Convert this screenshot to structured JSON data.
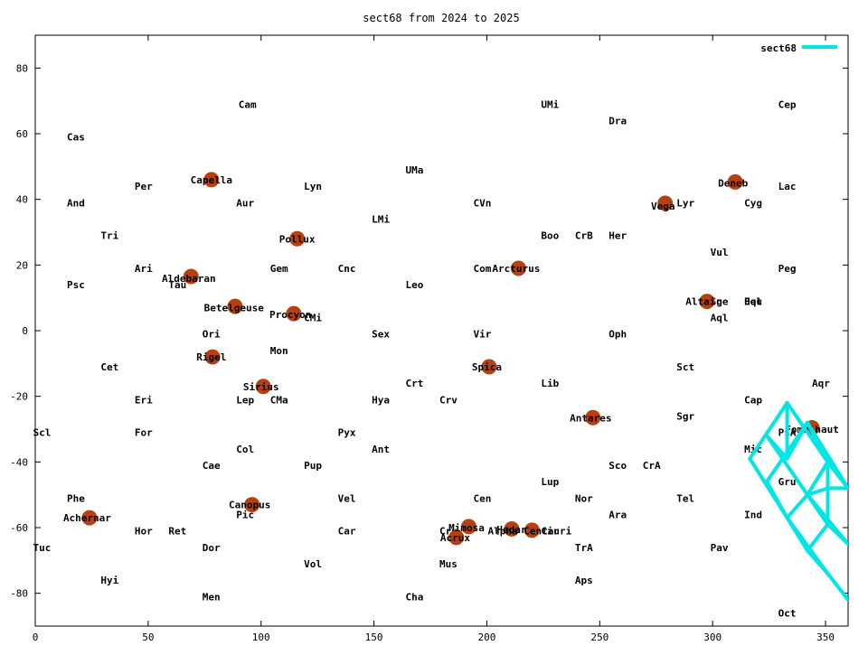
{
  "chart_data": {
    "type": "scatter",
    "title": "sect68 from 2024 to 2025",
    "xlabel": "",
    "ylabel": "",
    "xlim": [
      0,
      360
    ],
    "ylim": [
      -90,
      90
    ],
    "xticks": [
      0,
      50,
      100,
      150,
      200,
      250,
      300,
      350
    ],
    "yticks": [
      -80,
      -60,
      -40,
      -20,
      0,
      20,
      40,
      60,
      80
    ],
    "grid": false,
    "legend": {
      "position": "top-right",
      "label": "sect68",
      "color": "#00e5e5"
    },
    "colors": {
      "star": "#b8400f",
      "series": "#00e5e5",
      "axis": "#000000"
    },
    "series": [
      {
        "name": "sect68",
        "color": "#00e5e5",
        "segments": [
          [
            [
              316.5,
              -39
            ],
            [
              333,
              -22
            ],
            [
              351,
              -40
            ],
            [
              360,
              -48
            ]
          ],
          [
            [
              316.5,
              -39
            ],
            [
              333,
              -57
            ],
            [
              351,
              -74
            ],
            [
              360,
              -82
            ]
          ],
          [
            [
              324,
              -32
            ],
            [
              342,
              -50
            ],
            [
              360,
              -65
            ]
          ],
          [
            [
              324,
              -46
            ],
            [
              342,
              -28
            ],
            [
              360,
              -48
            ]
          ],
          [
            [
              333,
              -22
            ],
            [
              333,
              -39
            ]
          ],
          [
            [
              324,
              -32
            ],
            [
              333,
              -39
            ],
            [
              342,
              -28
            ]
          ],
          [
            [
              333,
              -57
            ],
            [
              342,
              -50
            ],
            [
              351,
              -40
            ],
            [
              360,
              -48
            ]
          ],
          [
            [
              342,
              -50
            ],
            [
              351,
              -59
            ],
            [
              360,
              -65
            ]
          ],
          [
            [
              342,
              -50
            ],
            [
              351,
              -48
            ],
            [
              360,
              -48
            ]
          ],
          [
            [
              351,
              -40
            ],
            [
              351,
              -59
            ]
          ],
          [
            [
              324,
              -46
            ],
            [
              333,
              -57
            ]
          ],
          [
            [
              342,
              -67
            ],
            [
              351,
              -74
            ]
          ],
          [
            [
              333,
              -57
            ],
            [
              342,
              -67
            ],
            [
              351,
              -59
            ]
          ],
          [
            [
              342,
              -28
            ],
            [
              351,
              -40
            ]
          ]
        ]
      }
    ],
    "stars": [
      {
        "name": "Capella",
        "x": 78,
        "y": 46
      },
      {
        "name": "Aldebaran",
        "x": 69,
        "y": 16.5
      },
      {
        "name": "Betelgeuse",
        "x": 88.5,
        "y": 7.4
      },
      {
        "name": "Rigel",
        "x": 78.5,
        "y": -8
      },
      {
        "name": "Sirius",
        "x": 101,
        "y": -17
      },
      {
        "name": "Canopus",
        "x": 96,
        "y": -53
      },
      {
        "name": "Achernar",
        "x": 24,
        "y": -57
      },
      {
        "name": "Pollux",
        "x": 116,
        "y": 28
      },
      {
        "name": "Procyon",
        "x": 114.5,
        "y": 5.2
      },
      {
        "name": "Arcturus",
        "x": 214,
        "y": 19
      },
      {
        "name": "Spica",
        "x": 201,
        "y": -11
      },
      {
        "name": "Antares",
        "x": 247,
        "y": -26.5
      },
      {
        "name": "Mimosa",
        "x": 192,
        "y": -59.7
      },
      {
        "name": "Acrux",
        "x": 186.5,
        "y": -63
      },
      {
        "name": "Hadar",
        "x": 211,
        "y": -60.4
      },
      {
        "name": "Alpha Centauri",
        "x": 220,
        "y": -60.8
      },
      {
        "name": "Vega",
        "x": 279,
        "y": 38.8
      },
      {
        "name": "Deneb",
        "x": 310,
        "y": 45.3
      },
      {
        "name": "Altair",
        "x": 297.5,
        "y": 8.9
      },
      {
        "name": "Fomalhaut",
        "x": 344,
        "y": -29.6
      }
    ],
    "star_labels": [
      {
        "text": "Capella",
        "x": 78,
        "y": 46
      },
      {
        "text": "Aldebaran",
        "x": 68,
        "y": 16
      },
      {
        "text": "Betelgeuse",
        "x": 88,
        "y": 7
      },
      {
        "text": "Rigel",
        "x": 78,
        "y": -8
      },
      {
        "text": "Sirius",
        "x": 100,
        "y": -17
      },
      {
        "text": "Canopus",
        "x": 95,
        "y": -53
      },
      {
        "text": "Achernar",
        "x": 23,
        "y": -57
      },
      {
        "text": "Pollux",
        "x": 116,
        "y": 28
      },
      {
        "text": "Procyon",
        "x": 113,
        "y": 5
      },
      {
        "text": "Arcturus",
        "x": 213,
        "y": 19
      },
      {
        "text": "Spica",
        "x": 200,
        "y": -11
      },
      {
        "text": "Antares",
        "x": 246,
        "y": -26.5
      },
      {
        "text": "Mimosa",
        "x": 191,
        "y": -60
      },
      {
        "text": "Acrux",
        "x": 186,
        "y": -63
      },
      {
        "text": "Alpha Centauri",
        "x": 219,
        "y": -61
      },
      {
        "text": "Hadar",
        "x": 211,
        "y": -60.5
      },
      {
        "text": "Vega",
        "x": 278,
        "y": 38
      },
      {
        "text": "Deneb",
        "x": 309,
        "y": 45
      },
      {
        "text": "Altair",
        "x": 296,
        "y": 9
      },
      {
        "text": "Fomalhaut",
        "x": 344,
        "y": -30
      }
    ],
    "constellation_labels": [
      {
        "text": "Cam",
        "x": 90,
        "y": 69
      },
      {
        "text": "UMi",
        "x": 224,
        "y": 69
      },
      {
        "text": "Cep",
        "x": 329,
        "y": 69
      },
      {
        "text": "Dra",
        "x": 254,
        "y": 64
      },
      {
        "text": "Cas",
        "x": 14,
        "y": 59
      },
      {
        "text": "UMa",
        "x": 164,
        "y": 49
      },
      {
        "text": "Per",
        "x": 44,
        "y": 44
      },
      {
        "text": "Lyn",
        "x": 119,
        "y": 44
      },
      {
        "text": "Lac",
        "x": 329,
        "y": 44
      },
      {
        "text": "And",
        "x": 14,
        "y": 39
      },
      {
        "text": "Aur",
        "x": 89,
        "y": 39
      },
      {
        "text": "CVn",
        "x": 194,
        "y": 39
      },
      {
        "text": "Lyr",
        "x": 284,
        "y": 39
      },
      {
        "text": "Cyg",
        "x": 314,
        "y": 39
      },
      {
        "text": "LMi",
        "x": 149,
        "y": 34
      },
      {
        "text": "Tri",
        "x": 29,
        "y": 29
      },
      {
        "text": "Boo",
        "x": 224,
        "y": 29
      },
      {
        "text": "CrB",
        "x": 239,
        "y": 29
      },
      {
        "text": "Her",
        "x": 254,
        "y": 29
      },
      {
        "text": "Vul",
        "x": 299,
        "y": 24
      },
      {
        "text": "Ari",
        "x": 44,
        "y": 19
      },
      {
        "text": "Gem",
        "x": 104,
        "y": 19
      },
      {
        "text": "Cnc",
        "x": 134,
        "y": 19
      },
      {
        "text": "Com",
        "x": 194,
        "y": 19
      },
      {
        "text": "Peg",
        "x": 329,
        "y": 19
      },
      {
        "text": "Psc",
        "x": 14,
        "y": 14
      },
      {
        "text": "Tau",
        "x": 59,
        "y": 14
      },
      {
        "text": "Leo",
        "x": 164,
        "y": 14
      },
      {
        "text": "Sge",
        "x": 299,
        "y": 9
      },
      {
        "text": "Equ",
        "x": 314,
        "y": 9
      },
      {
        "text": "Del",
        "x": 314,
        "y": 9
      },
      {
        "text": "CMi",
        "x": 119,
        "y": 4
      },
      {
        "text": "Aql",
        "x": 299,
        "y": 4
      },
      {
        "text": "Ori",
        "x": 74,
        "y": -1
      },
      {
        "text": "Sex",
        "x": 149,
        "y": -1
      },
      {
        "text": "Vir",
        "x": 194,
        "y": -1
      },
      {
        "text": "Oph",
        "x": 254,
        "y": -1
      },
      {
        "text": "Mon",
        "x": 104,
        "y": -6
      },
      {
        "text": "Cet",
        "x": 29,
        "y": -11
      },
      {
        "text": "Sct",
        "x": 284,
        "y": -11
      },
      {
        "text": "Aqr",
        "x": 344,
        "y": -16
      },
      {
        "text": "Crt",
        "x": 164,
        "y": -16
      },
      {
        "text": "Lib",
        "x": 224,
        "y": -16
      },
      {
        "text": "Eri",
        "x": 44,
        "y": -21
      },
      {
        "text": "Lep",
        "x": 89,
        "y": -21
      },
      {
        "text": "CMa",
        "x": 104,
        "y": -21
      },
      {
        "text": "Hya",
        "x": 149,
        "y": -21
      },
      {
        "text": "Crv",
        "x": 179,
        "y": -21
      },
      {
        "text": "Cap",
        "x": 314,
        "y": -21
      },
      {
        "text": "Sgr",
        "x": 284,
        "y": -26
      },
      {
        "text": "Scl",
        "x": -1,
        "y": -31
      },
      {
        "text": "For",
        "x": 44,
        "y": -31
      },
      {
        "text": "Pyx",
        "x": 134,
        "y": -31
      },
      {
        "text": "PsA",
        "x": 329,
        "y": -31
      },
      {
        "text": "Col",
        "x": 89,
        "y": -36
      },
      {
        "text": "Ant",
        "x": 149,
        "y": -36
      },
      {
        "text": "Mic",
        "x": 314,
        "y": -36
      },
      {
        "text": "Cae",
        "x": 74,
        "y": -41
      },
      {
        "text": "Pup",
        "x": 119,
        "y": -41
      },
      {
        "text": "Sco",
        "x": 254,
        "y": -41
      },
      {
        "text": "CrA",
        "x": 269,
        "y": -41
      },
      {
        "text": "Gru",
        "x": 329,
        "y": -46
      },
      {
        "text": "Lup",
        "x": 224,
        "y": -46
      },
      {
        "text": "Phe",
        "x": 14,
        "y": -51
      },
      {
        "text": "Vel",
        "x": 134,
        "y": -51
      },
      {
        "text": "Cen",
        "x": 194,
        "y": -51
      },
      {
        "text": "Nor",
        "x": 239,
        "y": -51
      },
      {
        "text": "Tel",
        "x": 284,
        "y": -51
      },
      {
        "text": "Pic",
        "x": 89,
        "y": -56
      },
      {
        "text": "Ara",
        "x": 254,
        "y": -56
      },
      {
        "text": "Ind",
        "x": 314,
        "y": -56
      },
      {
        "text": "Hor",
        "x": 44,
        "y": -61
      },
      {
        "text": "Ret",
        "x": 59,
        "y": -61
      },
      {
        "text": "Car",
        "x": 134,
        "y": -61
      },
      {
        "text": "Cru",
        "x": 179,
        "y": -61
      },
      {
        "text": "Cir",
        "x": 224,
        "y": -61
      },
      {
        "text": "Tuc",
        "x": -1,
        "y": -66
      },
      {
        "text": "Dor",
        "x": 74,
        "y": -66
      },
      {
        "text": "TrA",
        "x": 239,
        "y": -66
      },
      {
        "text": "Pav",
        "x": 299,
        "y": -66
      },
      {
        "text": "Vol",
        "x": 119,
        "y": -71
      },
      {
        "text": "Mus",
        "x": 179,
        "y": -71
      },
      {
        "text": "Hyi",
        "x": 29,
        "y": -76
      },
      {
        "text": "Aps",
        "x": 239,
        "y": -76
      },
      {
        "text": "Men",
        "x": 74,
        "y": -81
      },
      {
        "text": "Cha",
        "x": 164,
        "y": -81
      },
      {
        "text": "Oct",
        "x": 329,
        "y": -86
      }
    ]
  }
}
